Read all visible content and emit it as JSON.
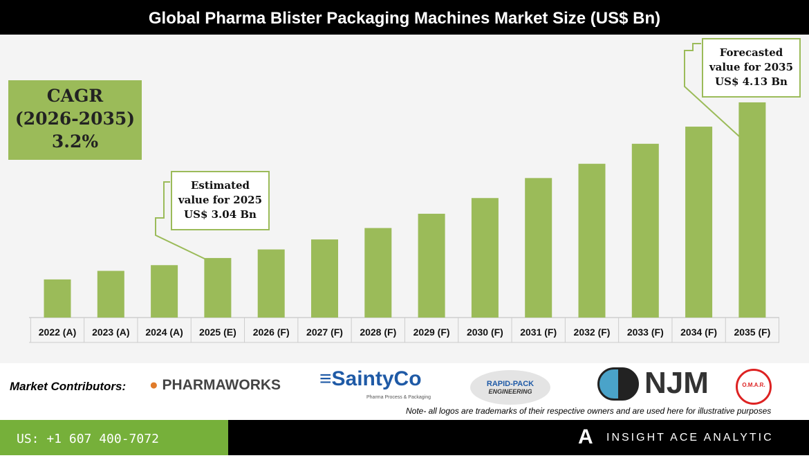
{
  "chart_data": {
    "type": "bar",
    "title": "Global Pharma Blister Packaging Machines Market Size (US$ Bn)",
    "categories": [
      "2022 (A)",
      "2023 (A)",
      "2024 (A)",
      "2025 (E)",
      "2026 (F)",
      "2027 (F)",
      "2028 (F)",
      "2029 (F)",
      "2030 (F)",
      "2031 (F)",
      "2032 (F)",
      "2033 (F)",
      "2034 (F)",
      "2035 (F)"
    ],
    "values": [
      2.89,
      2.95,
      2.99,
      3.04,
      3.1,
      3.17,
      3.25,
      3.35,
      3.46,
      3.6,
      3.7,
      3.84,
      3.96,
      4.13
    ],
    "bar_color": "#9bbb59",
    "grid": false
  },
  "cagr": {
    "label": "CAGR",
    "period": "(2026-2035)",
    "value": "3.2%"
  },
  "callouts": {
    "estimated": [
      "Estimated",
      "value for 2025",
      "US$ 3.04 Bn"
    ],
    "forecast": [
      "Forecasted",
      "value for 2035",
      "US$ 4.13 Bn"
    ]
  },
  "contributors": {
    "label": "Market Contributors:",
    "logos": [
      "PHARMAWORKS",
      "SaintyCo",
      "Pharma Process & Packaging",
      "RAPID-PACK",
      "ENGINEERING",
      "NJM",
      "O.M.A.R."
    ]
  },
  "note": "Note- all logos are trademarks of their respective owners and are used here for illustrative purposes",
  "footer": {
    "phone": "US: +1 607 400-7072",
    "brand": "INSIGHT ACE ANALYTIC"
  }
}
